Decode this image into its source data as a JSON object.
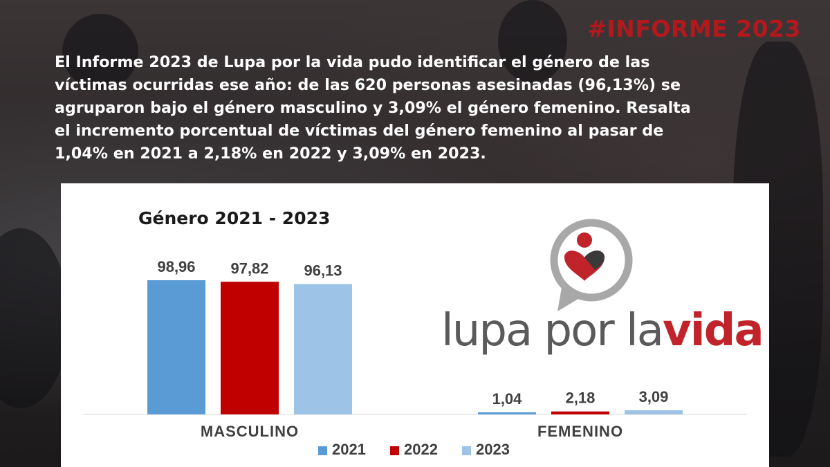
{
  "header": {
    "hashtag": "#INFORME 2023",
    "intro": "El Informe 2023 de Lupa por la vida pudo identificar el género de las\nvíctimas ocurridas ese año: de las 620 personas asesinadas (96,13%) se\nagruparon bajo el género masculino y 3,09% el género femenino. Resalta\nel incremento porcentual de víctimas del género femenino al pasar de\n1,04% en  2021 a 2,18% en 2022 y 3,09% en 2023."
  },
  "logo": {
    "word1": "lupa",
    "word2": "por",
    "word3": "la",
    "word4": "vida"
  },
  "colors": {
    "series_2021": "#5b9bd5",
    "series_2022": "#c00000",
    "series_2023": "#9dc3e6",
    "accent": "#b3191c"
  },
  "chart_data": {
    "type": "bar",
    "title": "Género 2021 - 2023",
    "categories": [
      "MASCULINO",
      "FEMENINO"
    ],
    "series": [
      {
        "name": "2021",
        "values": [
          98.96,
          1.04
        ],
        "labels": [
          "98,96",
          "1,04"
        ]
      },
      {
        "name": "2022",
        "values": [
          97.82,
          2.18
        ],
        "labels": [
          "97,82",
          "2,18"
        ]
      },
      {
        "name": "2023",
        "values": [
          96.13,
          3.09
        ],
        "labels": [
          "96,13",
          "3,09"
        ]
      }
    ],
    "ylim": [
      0,
      100
    ],
    "grid": false,
    "legend": "bottom"
  }
}
